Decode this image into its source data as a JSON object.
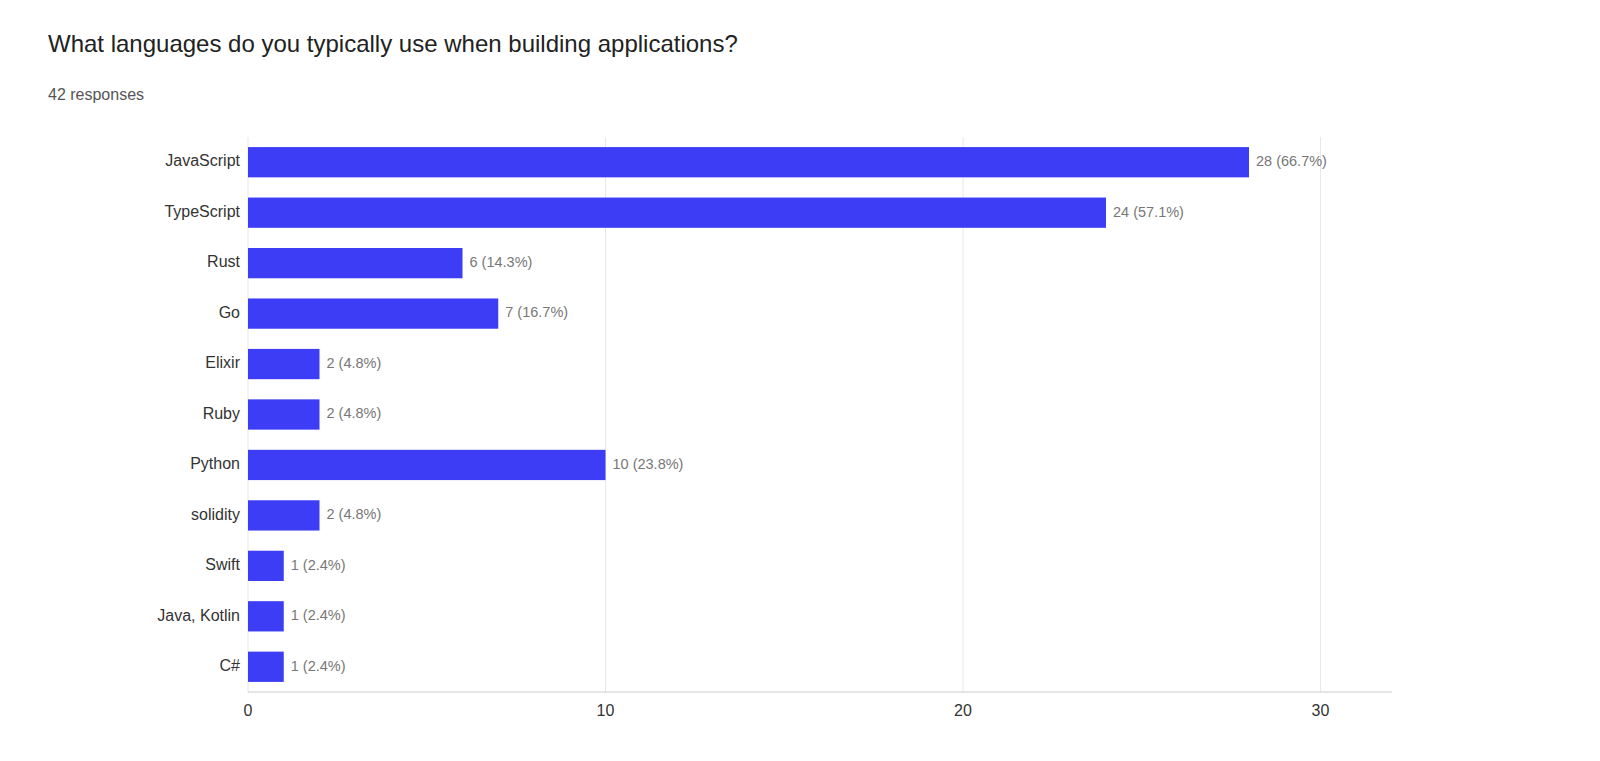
{
  "chart_data": {
    "type": "bar",
    "orientation": "horizontal",
    "title": "What languages do you typically use when building applications?",
    "subtitle": "42 responses",
    "categories": [
      "JavaScript",
      "TypeScript",
      "Rust",
      "Go",
      "Elixir",
      "Ruby",
      "Python",
      "solidity",
      "Swift",
      "Java, Kotlin",
      "C#"
    ],
    "values": [
      28,
      24,
      6,
      7,
      2,
      2,
      10,
      2,
      1,
      1,
      1
    ],
    "value_labels": [
      "28 (66.7%)",
      "24 (57.1%)",
      "6 (14.3%)",
      "7 (16.7%)",
      "2 (4.8%)",
      "2 (4.8%)",
      "10 (23.8%)",
      "2 (4.8%)",
      "1 (2.4%)",
      "1 (2.4%)",
      "1 (2.4%)"
    ],
    "data_labels": true,
    "color": "#3d3df5",
    "xlim": [
      0,
      32
    ],
    "xticks": [
      0,
      10,
      20,
      30
    ],
    "grid": true
  }
}
